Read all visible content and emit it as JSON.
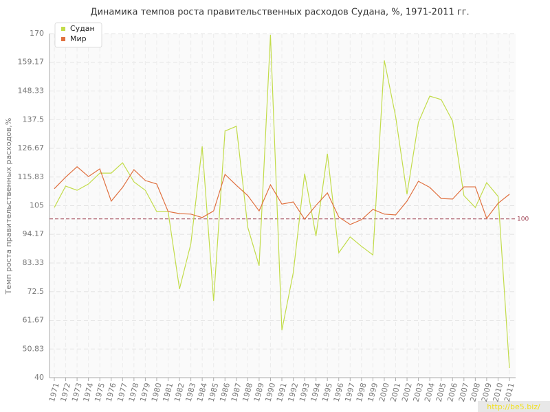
{
  "chart_data": {
    "type": "line",
    "title": "Динамика темпов роста правительственных расходов Судана, %, 1971-2011 гг.",
    "y_label": "Темп роста правительственных расходов,%",
    "categories": [
      "1971",
      "1972",
      "1973",
      "1974",
      "1975",
      "1976",
      "1977",
      "1978",
      "1979",
      "1980",
      "1981",
      "1982",
      "1983",
      "1984",
      "1985",
      "1986",
      "1987",
      "1988",
      "1989",
      "1990",
      "1991",
      "1992",
      "1993",
      "1994",
      "1995",
      "1996",
      "1997",
      "1998",
      "1999",
      "2000",
      "2001",
      "2002",
      "2003",
      "2004",
      "2005",
      "2006",
      "2007",
      "2008",
      "2009",
      "2010",
      "2011"
    ],
    "series": [
      {
        "name": "Судан",
        "color": "#c2dc4a",
        "values": [
          104.3,
          112.4,
          110.8,
          113.2,
          117.3,
          117.3,
          121.2,
          114,
          110.8,
          102.8,
          102.8,
          73.5,
          90.6,
          127.4,
          69,
          133.2,
          135,
          96.8,
          82.3,
          169.5,
          57.9,
          79.7,
          117.1,
          93.5,
          124.6,
          87.2,
          93.2,
          89.6,
          86.4,
          159.9,
          138.6,
          109.3,
          136.5,
          146.4,
          145.1,
          137,
          108.8,
          104.3,
          113.7,
          108.5,
          43.6
        ]
      },
      {
        "name": "Мир",
        "color": "#e0703f",
        "values": [
          111.4,
          115.8,
          119.7,
          116,
          118.9,
          106.7,
          111.9,
          118.6,
          114.5,
          113.2,
          102.8,
          102,
          101.8,
          100.5,
          103,
          116.8,
          112.7,
          108.8,
          103,
          112.9,
          105.6,
          106.4,
          99.9,
          105.1,
          109.8,
          100.7,
          97.9,
          99.7,
          103.6,
          101.8,
          101.5,
          106.7,
          114.2,
          111.9,
          107.7,
          107.5,
          112.1,
          112.1,
          100.2,
          105.9,
          109.3
        ]
      }
    ],
    "ylim": [
      40,
      170
    ],
    "yticks": [
      40,
      50.83,
      61.67,
      72.5,
      83.33,
      94.17,
      105,
      115.83,
      126.67,
      137.5,
      148.33,
      159.17,
      170
    ],
    "grid": true,
    "legend": "top-left",
    "reference_line": {
      "value": 100,
      "color": "#a04455"
    }
  },
  "watermark": "http://be5.biz/"
}
